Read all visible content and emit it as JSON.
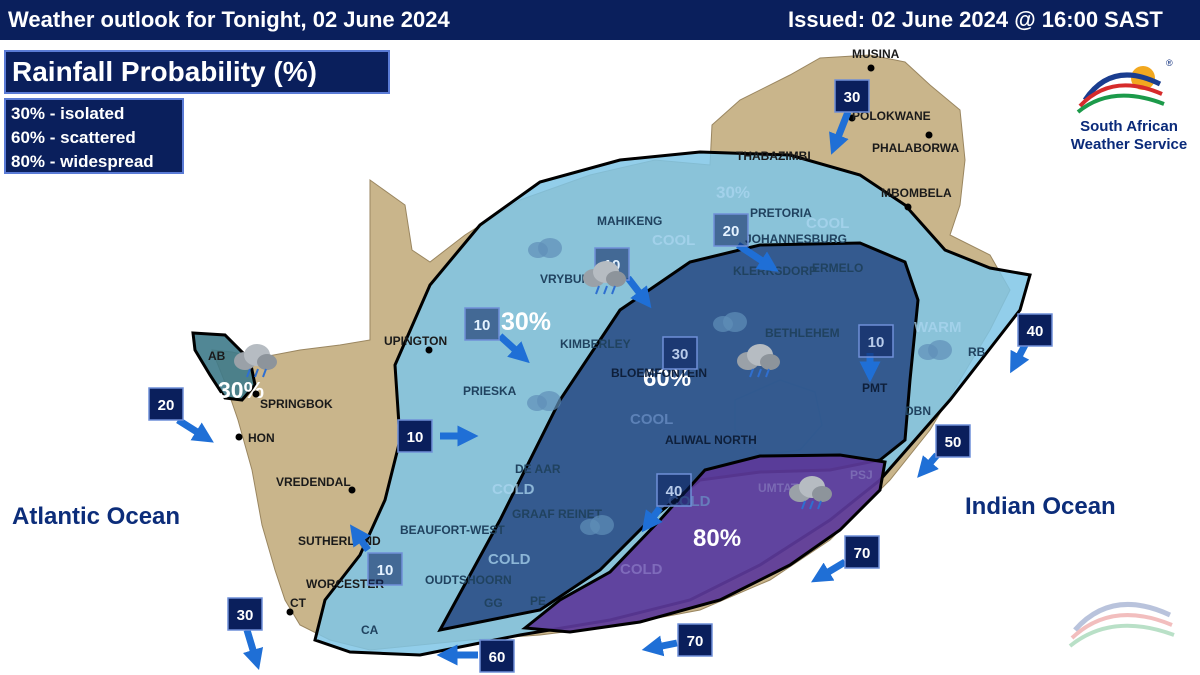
{
  "header": {
    "title": "Weather outlook for Tonight, 02 June 2024",
    "issued": "Issued: 02 June 2024  @ 16:00 SAST"
  },
  "legend": {
    "title": "Rainfall Probability (%)",
    "items": [
      "30% - isolated",
      "60% - scattered",
      "80% - widespread"
    ]
  },
  "oceans": {
    "atlantic": "Atlantic Ocean",
    "indian": "Indian Ocean"
  },
  "branding": {
    "line1": "South African",
    "line2": "Weather Service",
    "registered": "®"
  },
  "colors": {
    "land": "#c9b58b",
    "zone30": "#7fc6e6",
    "zone60": "#2a4f86",
    "zone80": "#5c3a9a",
    "small30": "#3e7a8a",
    "header": "#0a1f5c",
    "arrow": "#1f6fd6",
    "windbox": "#0a1f5c"
  },
  "probability_zones": [
    {
      "name": "zone-30-west-coast",
      "label": "30%",
      "level": 30
    },
    {
      "name": "zone-30-interior",
      "label": "30%",
      "level": 30
    },
    {
      "name": "zone-60",
      "label": "60%",
      "level": 60
    },
    {
      "name": "zone-80",
      "label": "80%",
      "level": 80
    }
  ],
  "faint_labels": [
    "30%",
    "COOL",
    "COOL",
    "COOL",
    "WARM",
    "COLD",
    "COLD",
    "COLD",
    "COLD"
  ],
  "places": [
    "MUSINA",
    "POLOKWANE",
    "PHALABORWA",
    "THABAZIMBI",
    "MBOMBELA",
    "MAHIKENG",
    "PRETORIA",
    "JOHANNESBURG",
    "ERMELO",
    "VRYBURG",
    "KLERKSDORP",
    "UPINGTON",
    "KIMBERLEY",
    "BETHLEHEM",
    "AB",
    "SPRINGBOK",
    "HON",
    "PRIESKA",
    "BLOEMFONTEIN",
    "PMT",
    "DBN",
    "RB",
    "VREDENDAL",
    "ALIWAL NORTH",
    "DE AAR",
    "GRAAF REINET",
    "UMTATA",
    "PSJ",
    "BEAUFORT-WEST",
    "SUTHERLAND",
    "WORCESTER",
    "OUDTSHOORN",
    "CT",
    "GG",
    "PE",
    "CA"
  ],
  "wind_boxes": [
    "30",
    "20",
    "20",
    "10",
    "10",
    "30",
    "10",
    "40",
    "10",
    "50",
    "40",
    "10",
    "30",
    "70",
    "70",
    "60"
  ]
}
